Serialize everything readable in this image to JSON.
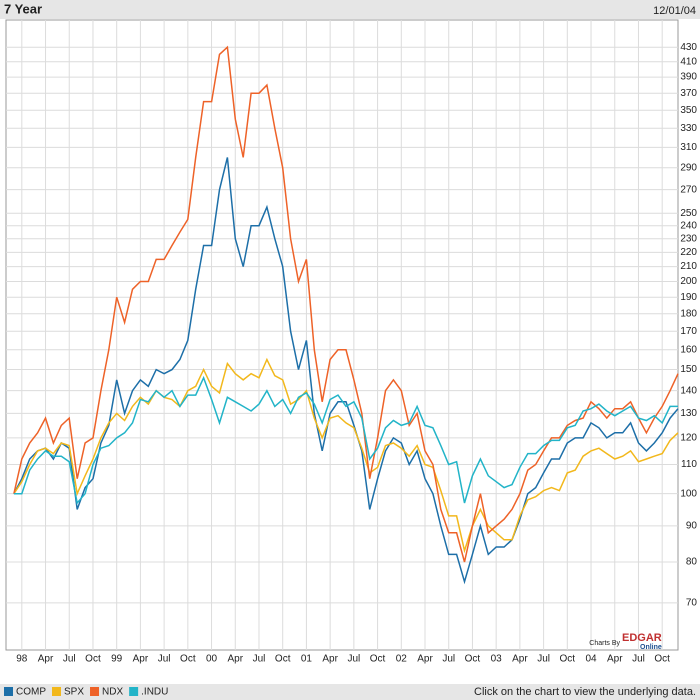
{
  "header": {
    "title": "7 Year",
    "date": "12/01/04"
  },
  "footer": {
    "note": "Click on the chart to view the underlying data.",
    "credit": [
      "Charts By",
      "EDGAR",
      "Online"
    ]
  },
  "chart_data": {
    "type": "line",
    "log": true,
    "grid": true,
    "x": [
      "1997-12",
      "1998-01",
      "1998-02",
      "1998-03",
      "1998-04",
      "1998-05",
      "1998-06",
      "1998-07",
      "1998-08",
      "1998-09",
      "1998-10",
      "1998-11",
      "1998-12",
      "1999-01",
      "1999-02",
      "1999-03",
      "1999-04",
      "1999-05",
      "1999-06",
      "1999-07",
      "1999-08",
      "1999-09",
      "1999-10",
      "1999-11",
      "1999-12",
      "2000-01",
      "2000-02",
      "2000-03",
      "2000-04",
      "2000-05",
      "2000-06",
      "2000-07",
      "2000-08",
      "2000-09",
      "2000-10",
      "2000-11",
      "2000-12",
      "2001-01",
      "2001-02",
      "2001-03",
      "2001-04",
      "2001-05",
      "2001-06",
      "2001-07",
      "2001-08",
      "2001-09",
      "2001-10",
      "2001-11",
      "2001-12",
      "2002-01",
      "2002-02",
      "2002-03",
      "2002-04",
      "2002-05",
      "2002-06",
      "2002-07",
      "2002-08",
      "2002-09",
      "2002-10",
      "2002-11",
      "2002-12",
      "2003-01",
      "2003-02",
      "2003-03",
      "2003-04",
      "2003-05",
      "2003-06",
      "2003-07",
      "2003-08",
      "2003-09",
      "2003-10",
      "2003-11",
      "2003-12",
      "2004-01",
      "2004-02",
      "2004-03",
      "2004-04",
      "2004-05",
      "2004-06",
      "2004-07",
      "2004-08",
      "2004-09",
      "2004-10",
      "2004-11",
      "2004-12"
    ],
    "series": [
      {
        "name": "COMP",
        "color": "#1d6fa8",
        "values": [
          100,
          105,
          112,
          115,
          116,
          112,
          118,
          116,
          95,
          102,
          105,
          118,
          125,
          145,
          130,
          140,
          145,
          142,
          150,
          148,
          150,
          155,
          165,
          195,
          225,
          225,
          270,
          300,
          230,
          210,
          240,
          240,
          255,
          230,
          210,
          170,
          150,
          165,
          130,
          115,
          130,
          135,
          135,
          125,
          115,
          95,
          105,
          115,
          120,
          118,
          110,
          115,
          105,
          100,
          90,
          82,
          82,
          75,
          82,
          90,
          82,
          84,
          84,
          86,
          92,
          100,
          102,
          107,
          112,
          112,
          118,
          120,
          120,
          126,
          124,
          120,
          122,
          122,
          126,
          118,
          115,
          118,
          122,
          128,
          132
        ]
      },
      {
        "name": "SPX",
        "color": "#f2b81c",
        "values": [
          100,
          104,
          110,
          115,
          116,
          114,
          118,
          117,
          100,
          106,
          112,
          120,
          126,
          130,
          127,
          133,
          137,
          134,
          140,
          137,
          136,
          133,
          140,
          142,
          150,
          142,
          139,
          153,
          148,
          145,
          148,
          146,
          155,
          147,
          145,
          134,
          136,
          140,
          128,
          120,
          128,
          129,
          126,
          124,
          116,
          107,
          109,
          117,
          118,
          116,
          113,
          117,
          110,
          109,
          101,
          93,
          93,
          83,
          90,
          95,
          90,
          88,
          86,
          86,
          93,
          98,
          99,
          101,
          102,
          101,
          107,
          108,
          113,
          115,
          116,
          114,
          112,
          113,
          115,
          111,
          112,
          113,
          114,
          119,
          122
        ]
      },
      {
        "name": "NDX",
        "color": "#ee6228",
        "values": [
          100,
          112,
          118,
          122,
          128,
          118,
          125,
          128,
          105,
          118,
          120,
          140,
          160,
          190,
          175,
          195,
          200,
          200,
          215,
          215,
          225,
          235,
          245,
          300,
          360,
          360,
          420,
          430,
          340,
          300,
          370,
          370,
          380,
          330,
          290,
          230,
          200,
          215,
          160,
          135,
          155,
          160,
          160,
          145,
          130,
          105,
          120,
          140,
          145,
          140,
          125,
          130,
          115,
          110,
          95,
          88,
          88,
          80,
          90,
          100,
          88,
          90,
          92,
          95,
          100,
          108,
          110,
          115,
          120,
          120,
          125,
          127,
          128,
          135,
          132,
          128,
          132,
          132,
          135,
          128,
          122,
          128,
          133,
          140,
          148
        ]
      },
      {
        "name": ".INDU",
        "color": "#22b4c8",
        "values": [
          100,
          100,
          108,
          112,
          115,
          113,
          113,
          111,
          97,
          100,
          110,
          116,
          117,
          120,
          122,
          126,
          136,
          135,
          140,
          137,
          140,
          133,
          138,
          138,
          146,
          136,
          126,
          137,
          135,
          133,
          131,
          134,
          140,
          133,
          136,
          130,
          137,
          139,
          134,
          126,
          136,
          138,
          133,
          135,
          128,
          112,
          116,
          124,
          127,
          125,
          126,
          133,
          125,
          124,
          117,
          110,
          111,
          97,
          106,
          112,
          106,
          104,
          102,
          103,
          109,
          114,
          114,
          117,
          119,
          119,
          124,
          125,
          131,
          132,
          134,
          131,
          129,
          131,
          133,
          128,
          127,
          129,
          126,
          133,
          133
        ]
      }
    ],
    "xlim": [
      "1997-11",
      "2004-12"
    ],
    "xticks": [
      {
        "value": "1998-01",
        "label": "98"
      },
      {
        "value": "1998-04",
        "label": "Apr"
      },
      {
        "value": "1998-07",
        "label": "Jul"
      },
      {
        "value": "1998-10",
        "label": "Oct"
      },
      {
        "value": "1999-01",
        "label": "99"
      },
      {
        "value": "1999-04",
        "label": "Apr"
      },
      {
        "value": "1999-07",
        "label": "Jul"
      },
      {
        "value": "1999-10",
        "label": "Oct"
      },
      {
        "value": "2000-01",
        "label": "00"
      },
      {
        "value": "2000-04",
        "label": "Apr"
      },
      {
        "value": "2000-07",
        "label": "Jul"
      },
      {
        "value": "2000-10",
        "label": "Oct"
      },
      {
        "value": "2001-01",
        "label": "01"
      },
      {
        "value": "2001-04",
        "label": "Apr"
      },
      {
        "value": "2001-07",
        "label": "Jul"
      },
      {
        "value": "2001-10",
        "label": "Oct"
      },
      {
        "value": "2002-01",
        "label": "02"
      },
      {
        "value": "2002-04",
        "label": "Apr"
      },
      {
        "value": "2002-07",
        "label": "Jul"
      },
      {
        "value": "2002-10",
        "label": "Oct"
      },
      {
        "value": "2003-01",
        "label": "03"
      },
      {
        "value": "2003-04",
        "label": "Apr"
      },
      {
        "value": "2003-07",
        "label": "Jul"
      },
      {
        "value": "2003-10",
        "label": "Oct"
      },
      {
        "value": "2004-01",
        "label": "04"
      },
      {
        "value": "2004-04",
        "label": "Apr"
      },
      {
        "value": "2004-07",
        "label": "Jul"
      },
      {
        "value": "2004-10",
        "label": "Oct"
      }
    ],
    "ylim": [
      60,
      470
    ],
    "yticks": [
      70,
      80,
      90,
      100,
      110,
      120,
      130,
      140,
      150,
      160,
      170,
      180,
      190,
      200,
      210,
      220,
      230,
      240,
      250,
      270,
      290,
      310,
      330,
      350,
      370,
      390,
      410,
      430
    ]
  }
}
